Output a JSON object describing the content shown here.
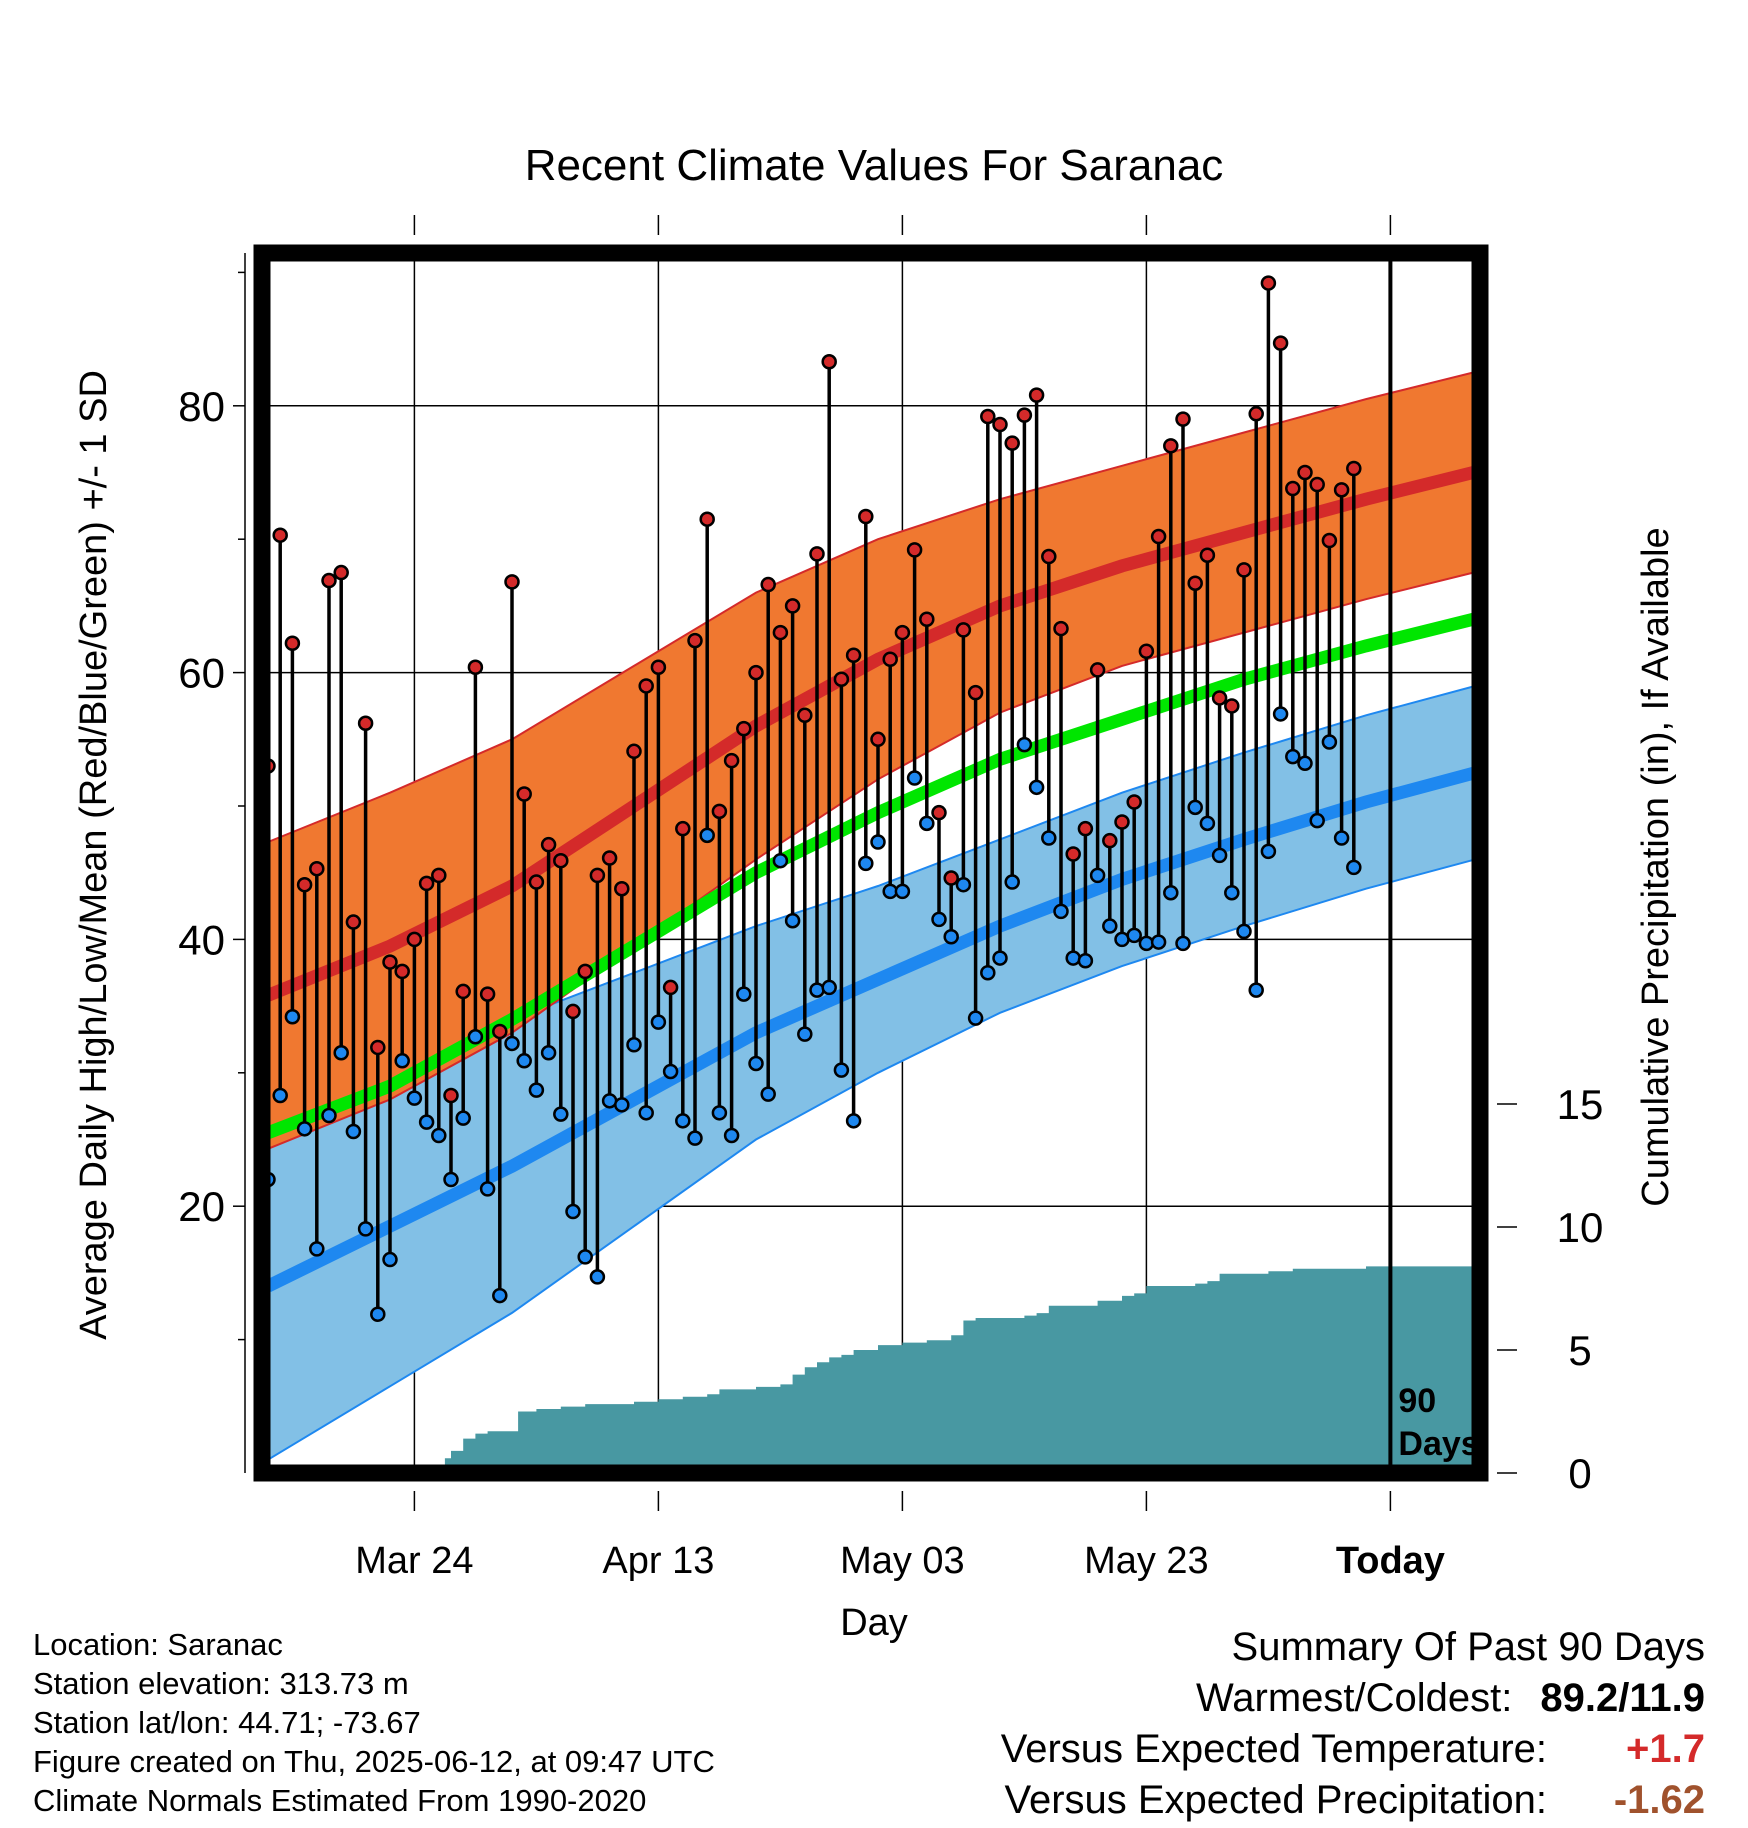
{
  "chart_data": {
    "type": "line",
    "title": "Recent Climate Values For Saranac",
    "xlabel": "Day",
    "ylabel_left": "Average Daily High/Low/Mean (Red/Blue/Green) +/- 1 SD",
    "ylabel_right": "Cumulative Precipitation (in), If Available",
    "x_tick_labels": [
      "Mar 24",
      "Apr 13",
      "May 03",
      "May 23",
      "Today"
    ],
    "x_tick_days": [
      12,
      32,
      52,
      72,
      92
    ],
    "xlim_days": [
      0,
      101
    ],
    "ylim_left": [
      0,
      94
    ],
    "y_left_ticks": [
      20,
      40,
      60,
      80
    ],
    "y_left_minor_ticks": [
      10,
      30,
      50,
      70,
      90
    ],
    "ylim_right": [
      0,
      55
    ],
    "y_right_ticks": [
      0,
      5,
      10,
      15
    ],
    "grid": true,
    "today_marker": {
      "day": 92,
      "label_line1": "90",
      "label_line2": "Days"
    },
    "colors": {
      "high_band": "#f07830",
      "high_line": "#d42a2a",
      "low_band": "#82c0e6",
      "low_line": "#1e88f0",
      "mean_line": "#00e600",
      "precip": "#4898a2",
      "high_point": "#d42a2a",
      "low_point": "#1e88f0"
    },
    "normals": {
      "days": [
        0,
        10,
        20,
        30,
        40,
        50,
        60,
        70,
        80,
        90,
        101
      ],
      "high_mean": [
        35.8,
        39.5,
        44.0,
        50.0,
        56.0,
        61.0,
        65.0,
        68.0,
        70.5,
        73.0,
        75.5
      ],
      "high_sd": [
        11.5,
        11.5,
        11.0,
        10.5,
        10.0,
        9.0,
        8.0,
        7.5,
        7.5,
        7.5,
        7.5
      ],
      "low_mean": [
        14.0,
        18.5,
        23.0,
        28.0,
        33.0,
        37.0,
        41.0,
        44.5,
        47.5,
        50.3,
        53.0
      ],
      "low_sd": [
        13.0,
        12.0,
        11.0,
        9.5,
        8.0,
        7.0,
        6.5,
        6.5,
        6.5,
        6.5,
        6.5
      ],
      "mean": [
        25.5,
        29.0,
        34.0,
        39.5,
        45.0,
        49.5,
        53.5,
        56.5,
        59.5,
        62.0,
        64.5
      ]
    },
    "daily": {
      "start_day": 0,
      "high": [
        53.0,
        70.3,
        62.2,
        44.1,
        45.3,
        66.9,
        67.5,
        41.3,
        56.2,
        31.9,
        38.3,
        37.6,
        40.0,
        44.2,
        44.8,
        28.3,
        36.1,
        60.4,
        35.9,
        33.1,
        66.8,
        50.9,
        44.3,
        47.1,
        45.9,
        34.6,
        37.6,
        44.8,
        46.1,
        43.8,
        54.1,
        59.0,
        60.4,
        36.4,
        48.3,
        62.4,
        71.5,
        49.6,
        53.4,
        55.8,
        60.0,
        66.6,
        63.0,
        65.0,
        56.8,
        68.9,
        83.3,
        59.5,
        61.3,
        71.7,
        55.0,
        61.0,
        63.0,
        69.2,
        64.0,
        49.5,
        44.6,
        63.2,
        58.5,
        79.2,
        78.6,
        77.2,
        79.3,
        80.8,
        68.7,
        63.3,
        46.4,
        48.3,
        60.2,
        47.4,
        48.8,
        50.3,
        61.6,
        70.2,
        77.0,
        79.0,
        66.7,
        68.8,
        58.1,
        57.5,
        67.7,
        79.4,
        89.2,
        84.7,
        73.8,
        75.0,
        74.1,
        69.9,
        73.7,
        75.3
      ],
      "low": [
        22.0,
        28.3,
        34.2,
        25.8,
        16.8,
        26.8,
        31.5,
        25.6,
        18.3,
        11.9,
        16.0,
        30.9,
        28.1,
        26.3,
        25.3,
        22.0,
        26.6,
        32.7,
        21.3,
        13.3,
        32.2,
        30.9,
        28.7,
        31.5,
        26.9,
        19.6,
        16.2,
        14.7,
        27.9,
        27.6,
        32.1,
        27.0,
        33.8,
        30.1,
        26.4,
        25.1,
        47.8,
        27.0,
        25.3,
        35.9,
        30.7,
        28.4,
        45.9,
        41.4,
        32.9,
        36.2,
        36.4,
        30.2,
        26.4,
        45.7,
        47.3,
        43.6,
        43.6,
        52.1,
        48.7,
        41.5,
        40.2,
        44.1,
        34.1,
        37.5,
        38.6,
        44.3,
        54.6,
        51.4,
        47.6,
        42.1,
        38.6,
        38.4,
        44.8,
        41.0,
        40.0,
        40.3,
        39.7,
        39.8,
        43.5,
        39.7,
        49.9,
        48.7,
        46.3,
        43.5,
        40.6,
        36.2,
        46.6,
        56.9,
        53.7,
        53.2,
        48.9,
        54.8,
        47.6,
        45.4
      ]
    },
    "precip_cumulative": {
      "days": [
        0,
        10,
        14,
        14.5,
        15,
        16,
        17,
        18,
        20,
        20.5,
        22,
        24,
        26,
        28,
        30,
        32,
        34,
        36,
        37,
        40,
        42,
        43,
        44,
        45,
        46,
        47,
        48,
        50,
        52,
        54,
        55,
        56,
        57,
        58,
        60,
        62,
        63,
        64,
        66,
        68,
        70,
        71,
        72,
        74,
        76,
        77,
        78,
        80,
        82,
        84,
        86,
        88,
        90,
        91,
        95,
        101
      ],
      "values": [
        0.0,
        0.0,
        0.3,
        0.6,
        0.9,
        1.4,
        1.6,
        1.7,
        1.7,
        2.5,
        2.6,
        2.7,
        2.8,
        2.8,
        2.9,
        3.0,
        3.1,
        3.2,
        3.4,
        3.5,
        3.6,
        4.0,
        4.3,
        4.5,
        4.7,
        4.8,
        5.0,
        5.2,
        5.3,
        5.4,
        5.4,
        5.6,
        6.2,
        6.3,
        6.3,
        6.4,
        6.5,
        6.8,
        6.8,
        7.0,
        7.2,
        7.3,
        7.6,
        7.6,
        7.7,
        7.8,
        8.1,
        8.1,
        8.2,
        8.3,
        8.3,
        8.3,
        8.4,
        8.4,
        8.4,
        8.4
      ]
    }
  },
  "info": {
    "location": "Location: Saranac",
    "elevation": "Station elevation: 313.73 m",
    "latlon": "Station lat/lon: 44.71; -73.67",
    "created": "Figure created on Thu, 2025-06-12, at 09:47 UTC",
    "normals": "Climate Normals Estimated From 1990-2020"
  },
  "summary": {
    "title": "Summary Of Past 90 Days",
    "warmest_label": "Warmest/Coldest:",
    "warmest_value": "89.2/11.9",
    "temp_label": "Versus Expected Temperature:",
    "temp_value": "+1.7",
    "temp_color": "#d42a2a",
    "precip_label": "Versus Expected Precipitation:",
    "precip_value": "-1.62",
    "precip_color": "#a0522d"
  }
}
